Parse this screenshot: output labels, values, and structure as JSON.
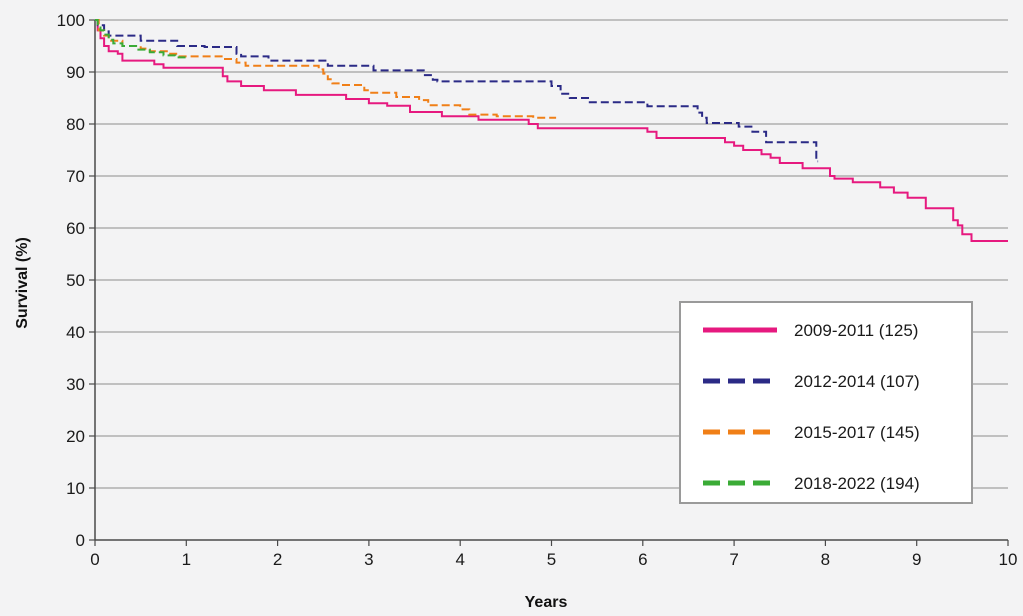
{
  "chart_data": {
    "type": "line",
    "step": true,
    "xlabel": "Years",
    "ylabel": "Survival (%)",
    "xlim": [
      0,
      10
    ],
    "ylim": [
      0,
      100
    ],
    "x_ticks": [
      0,
      1,
      2,
      3,
      4,
      5,
      6,
      7,
      8,
      9,
      10
    ],
    "y_ticks": [
      0,
      10,
      20,
      30,
      40,
      50,
      60,
      70,
      80,
      90,
      100
    ],
    "grid": "horizontal",
    "legend_position": "bottom-right",
    "series": [
      {
        "name": "2009-2011 (125)",
        "color": "#e6197f",
        "dash": "solid",
        "points": [
          [
            0,
            100
          ],
          [
            0.03,
            98
          ],
          [
            0.06,
            96.5
          ],
          [
            0.1,
            95
          ],
          [
            0.15,
            94
          ],
          [
            0.25,
            93.5
          ],
          [
            0.3,
            92.2
          ],
          [
            0.65,
            91.5
          ],
          [
            0.75,
            90.8
          ],
          [
            1.4,
            89.2
          ],
          [
            1.45,
            88.2
          ],
          [
            1.6,
            87.3
          ],
          [
            1.85,
            86.5
          ],
          [
            2.2,
            85.6
          ],
          [
            2.75,
            84.8
          ],
          [
            3.0,
            84
          ],
          [
            3.2,
            83.5
          ],
          [
            3.45,
            82.3
          ],
          [
            3.8,
            81.5
          ],
          [
            4.2,
            80.8
          ],
          [
            4.75,
            80
          ],
          [
            4.85,
            79.2
          ],
          [
            6.05,
            78.5
          ],
          [
            6.15,
            77.3
          ],
          [
            6.9,
            76.5
          ],
          [
            7.0,
            75.8
          ],
          [
            7.1,
            75
          ],
          [
            7.3,
            74.2
          ],
          [
            7.4,
            73.5
          ],
          [
            7.5,
            72.5
          ],
          [
            7.75,
            71.5
          ],
          [
            8.05,
            70
          ],
          [
            8.1,
            69.5
          ],
          [
            8.3,
            68.8
          ],
          [
            8.6,
            67.8
          ],
          [
            8.75,
            66.8
          ],
          [
            8.9,
            65.8
          ],
          [
            9.1,
            63.8
          ],
          [
            9.4,
            61.5
          ],
          [
            9.45,
            60.5
          ],
          [
            9.5,
            58.8
          ],
          [
            9.6,
            57.5
          ],
          [
            10.0,
            57.5
          ]
        ]
      },
      {
        "name": "2012-2014 (107)",
        "color": "#2b2a86",
        "dash": "dashed",
        "points": [
          [
            0,
            100
          ],
          [
            0.03,
            99
          ],
          [
            0.1,
            97.8
          ],
          [
            0.15,
            97
          ],
          [
            0.5,
            96
          ],
          [
            0.9,
            95
          ],
          [
            1.2,
            94.8
          ],
          [
            1.55,
            93.5
          ],
          [
            1.6,
            93
          ],
          [
            1.9,
            92.2
          ],
          [
            2.55,
            91.2
          ],
          [
            3.05,
            90.3
          ],
          [
            3.6,
            89.4
          ],
          [
            3.7,
            88.5
          ],
          [
            3.75,
            88.2
          ],
          [
            5.0,
            87.3
          ],
          [
            5.1,
            85.8
          ],
          [
            5.2,
            85
          ],
          [
            5.4,
            84.2
          ],
          [
            6.05,
            83.4
          ],
          [
            6.6,
            82.2
          ],
          [
            6.65,
            81.2
          ],
          [
            6.7,
            80.2
          ],
          [
            7.05,
            79.5
          ],
          [
            7.2,
            78.5
          ],
          [
            7.35,
            76.5
          ],
          [
            7.9,
            72.8
          ],
          [
            7.92,
            72.8
          ]
        ]
      },
      {
        "name": "2015-2017 (145)",
        "color": "#f07f17",
        "dash": "dashed",
        "points": [
          [
            0,
            100
          ],
          [
            0.04,
            98
          ],
          [
            0.1,
            97
          ],
          [
            0.15,
            96
          ],
          [
            0.3,
            95
          ],
          [
            0.5,
            94.5
          ],
          [
            0.6,
            94
          ],
          [
            0.8,
            93.5
          ],
          [
            0.9,
            93
          ],
          [
            1.4,
            92.5
          ],
          [
            1.55,
            91.8
          ],
          [
            1.65,
            91.2
          ],
          [
            2.45,
            90.5
          ],
          [
            2.5,
            89.7
          ],
          [
            2.55,
            88.6
          ],
          [
            2.6,
            87.8
          ],
          [
            2.7,
            87.5
          ],
          [
            2.95,
            86.5
          ],
          [
            3.0,
            86
          ],
          [
            3.3,
            85.2
          ],
          [
            3.55,
            84.6
          ],
          [
            3.65,
            83.6
          ],
          [
            4.0,
            82.8
          ],
          [
            4.1,
            81.8
          ],
          [
            4.4,
            81.5
          ],
          [
            4.8,
            81.2
          ],
          [
            5.05,
            81.2
          ]
        ]
      },
      {
        "name": "2018-2022 (194)",
        "color": "#3aab36",
        "dash": "dashed",
        "points": [
          [
            0,
            100
          ],
          [
            0.03,
            98.8
          ],
          [
            0.06,
            98
          ],
          [
            0.1,
            97.2
          ],
          [
            0.15,
            96.2
          ],
          [
            0.2,
            95.5
          ],
          [
            0.3,
            95
          ],
          [
            0.45,
            94.3
          ],
          [
            0.6,
            93.8
          ],
          [
            0.75,
            93.2
          ],
          [
            0.88,
            92.8
          ],
          [
            1.0,
            92.8
          ]
        ]
      }
    ]
  }
}
